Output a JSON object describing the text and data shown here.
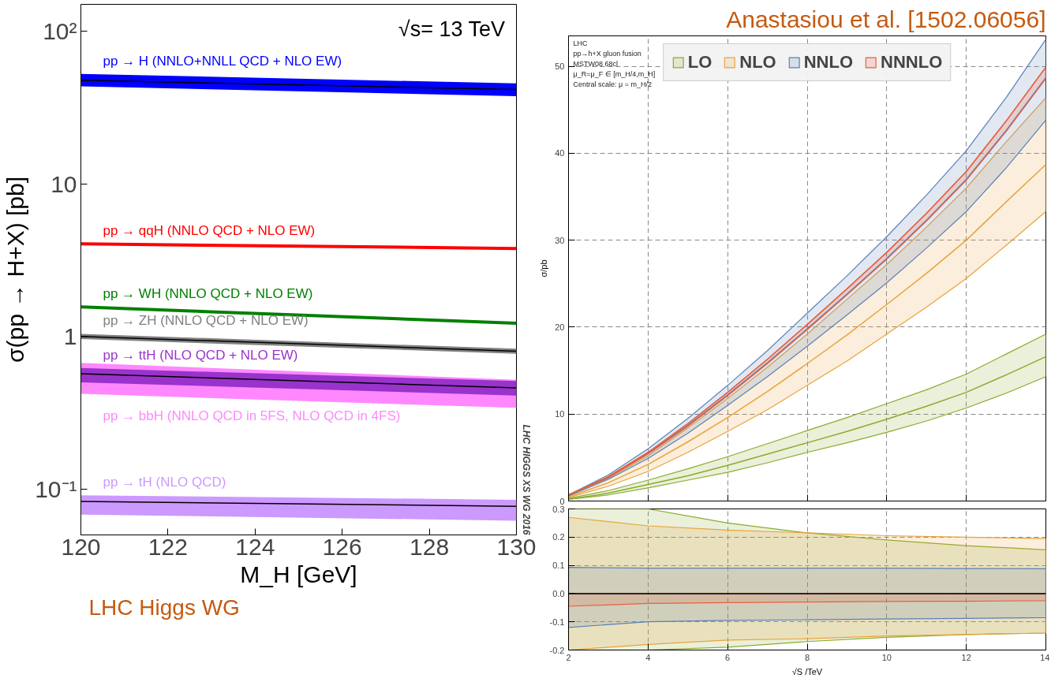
{
  "chart_data": [
    {
      "type": "line",
      "log": true,
      "xlabel": "M_H [GeV]",
      "ylabel": "σ(pp → H+X) [pb]",
      "x": [
        120,
        130
      ],
      "xlim": [
        120,
        130
      ],
      "xticks": [
        120,
        122,
        124,
        126,
        128,
        130
      ],
      "ylim": [
        0.05,
        150
      ],
      "yticks": [
        {
          "value": 100,
          "label": "10²"
        },
        10,
        1,
        {
          "value": 0.1,
          "label": "10⁻¹"
        }
      ],
      "grid": false,
      "annotations": [
        "√s= 13 TeV",
        "LHC HIGGS XS WG 2016",
        "LHC Higgs WG"
      ],
      "series": [
        {
          "name": "pp → H (NNLO+NNLL QCD + NLO EW)",
          "color": "#0000ff",
          "values": [
            null,
            null
          ],
          "lower": [
            43.5,
            37.5
          ],
          "upper": [
            52.5,
            45.5
          ]
        },
        {
          "color": "#000000",
          "values": [
            47.7,
            41.5
          ]
        },
        {
          "name": "pp → qqH (NNLO QCD + NLO EW)",
          "color": "#ff0000",
          "values": [
            4.04,
            3.77
          ]
        },
        {
          "name": "pp → WH (NNLO QCD + NLO EW)",
          "color": "#008000",
          "values": [
            1.56,
            1.22
          ]
        },
        {
          "name": "pp → ZH (NNLO QCD + NLO EW)",
          "color": "#808080",
          "values": [
            null,
            null
          ],
          "lower": [
            0.96,
            0.77
          ],
          "upper": [
            1.04,
            0.83
          ]
        },
        {
          "color": "#000000",
          "values": [
            1.0,
            0.8
          ]
        },
        {
          "name": "pp → bbH (NNLO QCD in 5FS, NLO QCD in 4FS)",
          "color": "#ff88ff",
          "values": [
            null,
            null
          ],
          "lower": [
            0.42,
            0.34
          ],
          "upper": [
            0.67,
            0.52
          ]
        },
        {
          "name": "pp → ttH (NLO QCD + NLO EW)",
          "color": "#9933cc",
          "values": [
            null,
            null
          ],
          "lower": [
            0.5,
            0.41
          ],
          "upper": [
            0.62,
            0.51
          ]
        },
        {
          "color": "#000000",
          "values": [
            0.57,
            0.46
          ]
        },
        {
          "name": "pp → tH (NLO QCD)",
          "color": "#cc99ff",
          "values": [
            null,
            null
          ],
          "lower": [
            0.068,
            0.062
          ],
          "upper": [
            0.091,
            0.085
          ]
        },
        {
          "color": "#000000",
          "values": [
            0.083,
            0.077
          ]
        }
      ]
    },
    {
      "type": "line",
      "title": "Anastasiou et al. [1502.06056]",
      "ylabel": "σ/pb",
      "x": [
        2,
        3,
        4,
        5,
        6,
        7,
        8,
        9,
        10,
        11,
        12,
        13,
        14
      ],
      "xlim": [
        2,
        14
      ],
      "xticks": [
        2,
        4,
        6,
        8,
        10,
        12,
        14
      ],
      "ylim": [
        0,
        53.5
      ],
      "yticks": [
        0,
        10,
        20,
        30,
        40,
        50
      ],
      "grid": true,
      "legend": "top",
      "tick_labels": "y",
      "annotations": [
        "LHC",
        "pp→h+X gluon fusion",
        "MSTW08 68cl",
        "μ_R=μ_F ∈ [m_H/4,m_H]",
        "Central scale: μ = m_H/2"
      ],
      "series": [
        {
          "name": "LO",
          "color": "#8aac2e",
          "values": [
            0.2,
            0.9,
            1.9,
            2.9,
            4.1,
            5.4,
            6.7,
            8.0,
            9.4,
            10.9,
            12.5,
            14.5,
            16.6
          ],
          "lower": [
            0.2,
            0.7,
            1.5,
            2.4,
            3.3,
            4.4,
            5.6,
            6.7,
            7.9,
            9.2,
            10.7,
            12.4,
            14.3
          ],
          "upper": [
            0.3,
            1.2,
            2.4,
            3.7,
            5.1,
            6.6,
            8.1,
            9.6,
            11.2,
            12.8,
            14.6,
            16.9,
            19.2
          ]
        },
        {
          "name": "NLO",
          "color": "#e8a33c",
          "values": [
            0.5,
            2.1,
            4.2,
            6.8,
            9.6,
            12.6,
            15.8,
            19.1,
            22.6,
            26.2,
            30.0,
            34.4,
            38.7
          ],
          "lower": [
            0.4,
            1.7,
            3.4,
            5.6,
            8.0,
            10.5,
            13.3,
            16.1,
            19.2,
            22.3,
            25.6,
            29.4,
            33.3
          ],
          "upper": [
            0.7,
            2.6,
            5.2,
            8.4,
            11.8,
            15.4,
            19.2,
            23.2,
            27.2,
            31.5,
            36.0,
            41.3,
            46.4
          ]
        },
        {
          "name": "NNLO",
          "color": "#5b80b8",
          "values": [
            0.7,
            2.7,
            5.5,
            8.7,
            12.2,
            15.9,
            19.8,
            23.8,
            27.9,
            32.3,
            37.0,
            42.6,
            48.7
          ],
          "lower": [
            0.6,
            2.5,
            4.9,
            7.8,
            11.0,
            14.3,
            17.8,
            21.4,
            25.1,
            29.1,
            33.3,
            38.3,
            43.8
          ],
          "upper": [
            0.7,
            3.0,
            6.0,
            9.5,
            13.3,
            17.3,
            21.6,
            25.9,
            30.4,
            35.2,
            40.3,
            46.4,
            53.1
          ]
        },
        {
          "name": "NNNLO",
          "color": "#e8603c",
          "values": [
            0.7,
            2.8,
            5.6,
            8.9,
            12.5,
            16.3,
            20.3,
            24.4,
            28.6,
            33.1,
            37.9,
            43.7,
            49.9
          ],
          "lower": [
            0.7,
            2.7,
            5.4,
            8.6,
            12.1,
            15.8,
            19.7,
            23.7,
            27.8,
            32.2,
            36.9,
            42.5,
            48.6
          ],
          "upper": [
            0.7,
            2.8,
            5.6,
            8.9,
            12.5,
            16.3,
            20.3,
            24.4,
            28.6,
            33.1,
            37.9,
            43.7,
            49.9
          ]
        }
      ]
    },
    {
      "type": "line",
      "xlabel": "√S /TeV",
      "x": [
        2,
        4,
        6,
        8,
        10,
        12,
        14
      ],
      "xlim": [
        2,
        14
      ],
      "xticks": [
        2,
        4,
        6,
        8,
        10,
        12,
        14
      ],
      "ylim": [
        -0.2,
        0.3
      ],
      "yticks": [
        -0.2,
        -0.1,
        {
          "value": 0,
          "label": "0.0"
        },
        0.1,
        0.2,
        0.3
      ],
      "grid": true,
      "ref_lines": [
        {
          "axis": "y",
          "value": 0,
          "color": "#000000"
        }
      ],
      "series": [
        {
          "color": "#8aac2e",
          "values": [
            null,
            null,
            null,
            null,
            null,
            null,
            null
          ],
          "lower": [
            -0.2,
            -0.2,
            -0.19,
            -0.17,
            -0.155,
            -0.145,
            -0.14
          ],
          "upper": [
            0.3,
            0.3,
            0.25,
            0.215,
            0.19,
            0.17,
            0.155
          ]
        },
        {
          "color": "#e8a33c",
          "values": [
            null,
            null,
            null,
            null,
            null,
            null,
            null
          ],
          "lower": [
            -0.2,
            -0.18,
            -0.165,
            -0.16,
            -0.15,
            -0.145,
            -0.14
          ],
          "upper": [
            0.27,
            0.24,
            0.225,
            0.215,
            0.205,
            0.2,
            0.195
          ]
        },
        {
          "color": "#5b80b8",
          "values": [
            null,
            null,
            null,
            null,
            null,
            null,
            null
          ],
          "lower": [
            -0.12,
            -0.1,
            -0.095,
            -0.093,
            -0.09,
            -0.088,
            -0.085
          ],
          "upper": [
            0.093,
            0.09,
            0.09,
            0.09,
            0.09,
            0.089,
            0.088
          ]
        },
        {
          "color": "#e8603c",
          "values": [
            null,
            null,
            null,
            null,
            null,
            null,
            null
          ],
          "lower": [
            -0.045,
            -0.035,
            -0.032,
            -0.03,
            -0.028,
            -0.027,
            -0.025
          ],
          "upper": [
            0,
            0,
            0,
            0,
            0,
            0,
            0
          ]
        }
      ]
    }
  ]
}
